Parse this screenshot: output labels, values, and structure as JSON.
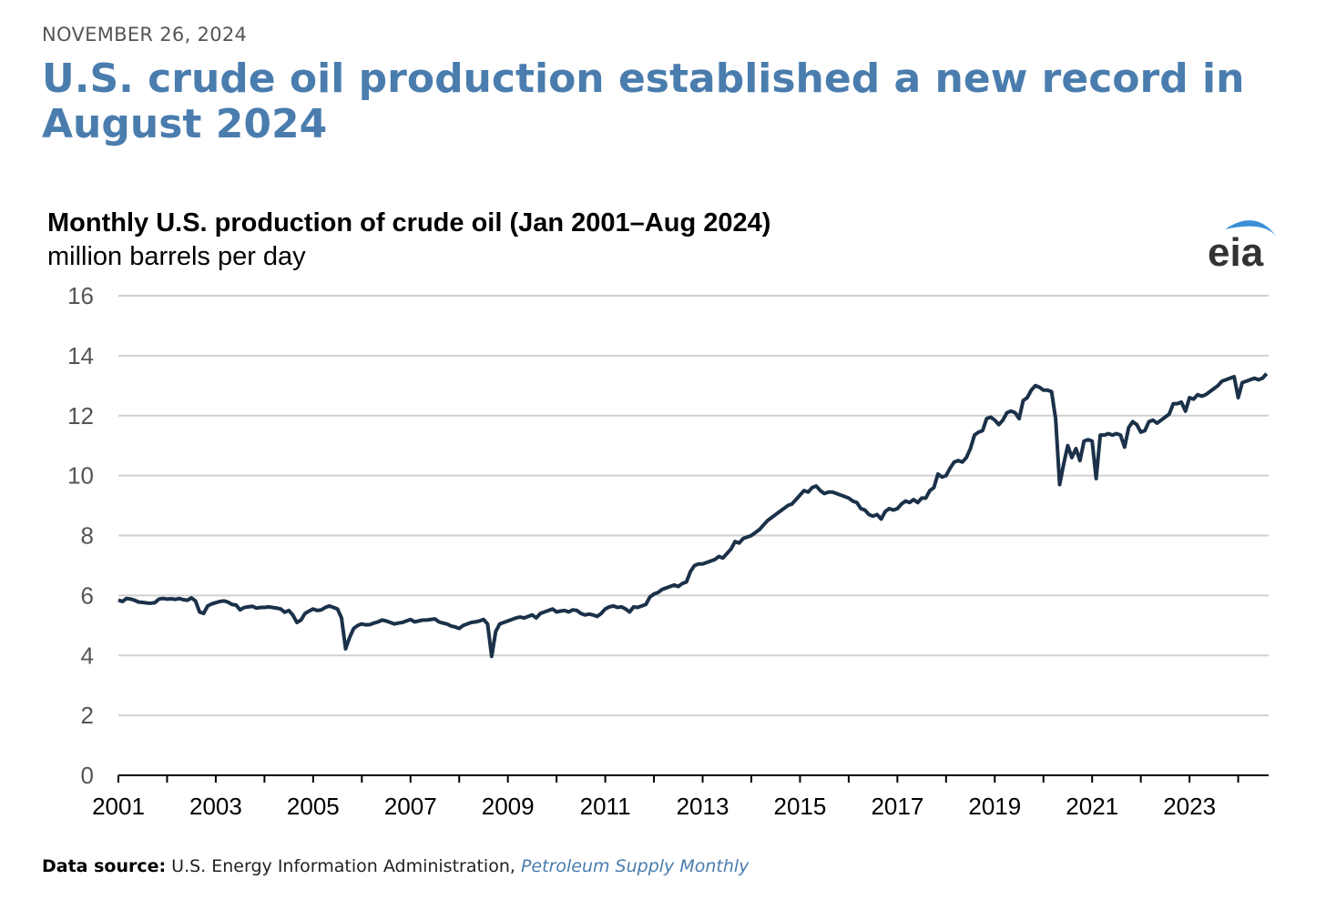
{
  "date": "NOVEMBER 26, 2024",
  "headline": "U.S. crude oil production established a new record in August 2024",
  "logo": "eia",
  "source": {
    "label": "Data source:",
    "text": "U.S. Energy Information Administration,",
    "link": "Petroleum Supply Monthly"
  },
  "chart_data": {
    "type": "line",
    "title": "Monthly U.S. production of crude oil (Jan 2001–Aug 2024)",
    "subtitle": "million barrels per day",
    "xlim": [
      2001,
      2024.625
    ],
    "xticks": [
      2001,
      2003,
      2005,
      2007,
      2009,
      2011,
      2013,
      2015,
      2017,
      2019,
      2021,
      2023
    ],
    "xminorticks": [
      2002,
      2004,
      2006,
      2008,
      2010,
      2012,
      2014,
      2016,
      2018,
      2020,
      2022,
      2024
    ],
    "ylim": [
      0,
      16
    ],
    "yticks": [
      0,
      2,
      4,
      6,
      8,
      10,
      12,
      14,
      16
    ],
    "grid": true,
    "x": [
      2001,
      2001.083,
      2001.167,
      2001.25,
      2001.333,
      2001.417,
      2001.5,
      2001.583,
      2001.667,
      2001.75,
      2001.833,
      2001.917,
      2002,
      2002.083,
      2002.167,
      2002.25,
      2002.333,
      2002.417,
      2002.5,
      2002.583,
      2002.667,
      2002.75,
      2002.833,
      2002.917,
      2003,
      2003.083,
      2003.167,
      2003.25,
      2003.333,
      2003.417,
      2003.5,
      2003.583,
      2003.667,
      2003.75,
      2003.833,
      2003.917,
      2004,
      2004.083,
      2004.167,
      2004.25,
      2004.333,
      2004.417,
      2004.5,
      2004.583,
      2004.667,
      2004.75,
      2004.833,
      2004.917,
      2005,
      2005.083,
      2005.167,
      2005.25,
      2005.333,
      2005.417,
      2005.5,
      2005.583,
      2005.667,
      2005.75,
      2005.833,
      2005.917,
      2006,
      2006.083,
      2006.167,
      2006.25,
      2006.333,
      2006.417,
      2006.5,
      2006.583,
      2006.667,
      2006.75,
      2006.833,
      2006.917,
      2007,
      2007.083,
      2007.167,
      2007.25,
      2007.333,
      2007.417,
      2007.5,
      2007.583,
      2007.667,
      2007.75,
      2007.833,
      2007.917,
      2008,
      2008.083,
      2008.167,
      2008.25,
      2008.333,
      2008.417,
      2008.5,
      2008.583,
      2008.667,
      2008.75,
      2008.833,
      2008.917,
      2009,
      2009.083,
      2009.167,
      2009.25,
      2009.333,
      2009.417,
      2009.5,
      2009.583,
      2009.667,
      2009.75,
      2009.833,
      2009.917,
      2010,
      2010.083,
      2010.167,
      2010.25,
      2010.333,
      2010.417,
      2010.5,
      2010.583,
      2010.667,
      2010.75,
      2010.833,
      2010.917,
      2011,
      2011.083,
      2011.167,
      2011.25,
      2011.333,
      2011.417,
      2011.5,
      2011.583,
      2011.667,
      2011.75,
      2011.833,
      2011.917,
      2012,
      2012.083,
      2012.167,
      2012.25,
      2012.333,
      2012.417,
      2012.5,
      2012.583,
      2012.667,
      2012.75,
      2012.833,
      2012.917,
      2013,
      2013.083,
      2013.167,
      2013.25,
      2013.333,
      2013.417,
      2013.5,
      2013.583,
      2013.667,
      2013.75,
      2013.833,
      2013.917,
      2014,
      2014.083,
      2014.167,
      2014.25,
      2014.333,
      2014.417,
      2014.5,
      2014.583,
      2014.667,
      2014.75,
      2014.833,
      2014.917,
      2015,
      2015.083,
      2015.167,
      2015.25,
      2015.333,
      2015.417,
      2015.5,
      2015.583,
      2015.667,
      2015.75,
      2015.833,
      2015.917,
      2016,
      2016.083,
      2016.167,
      2016.25,
      2016.333,
      2016.417,
      2016.5,
      2016.583,
      2016.667,
      2016.75,
      2016.833,
      2016.917,
      2017,
      2017.083,
      2017.167,
      2017.25,
      2017.333,
      2017.417,
      2017.5,
      2017.583,
      2017.667,
      2017.75,
      2017.833,
      2017.917,
      2018,
      2018.083,
      2018.167,
      2018.25,
      2018.333,
      2018.417,
      2018.5,
      2018.583,
      2018.667,
      2018.75,
      2018.833,
      2018.917,
      2019,
      2019.083,
      2019.167,
      2019.25,
      2019.333,
      2019.417,
      2019.5,
      2019.583,
      2019.667,
      2019.75,
      2019.833,
      2019.917,
      2020,
      2020.083,
      2020.167,
      2020.25,
      2020.333,
      2020.417,
      2020.5,
      2020.583,
      2020.667,
      2020.75,
      2020.833,
      2020.917,
      2021,
      2021.083,
      2021.167,
      2021.25,
      2021.333,
      2021.417,
      2021.5,
      2021.583,
      2021.667,
      2021.75,
      2021.833,
      2021.917,
      2022,
      2022.083,
      2022.167,
      2022.25,
      2022.333,
      2022.417,
      2022.5,
      2022.583,
      2022.667,
      2022.75,
      2022.833,
      2022.917,
      2023,
      2023.083,
      2023.167,
      2023.25,
      2023.333,
      2023.417,
      2023.5,
      2023.583,
      2023.667,
      2023.75,
      2023.833,
      2023.917,
      2024,
      2024.083,
      2024.167,
      2024.25,
      2024.333,
      2024.417,
      2024.5,
      2024.583
    ],
    "series": [
      {
        "color": "#1b3149",
        "values": [
          5.85,
          5.8,
          5.9,
          5.88,
          5.84,
          5.78,
          5.77,
          5.75,
          5.74,
          5.76,
          5.88,
          5.9,
          5.88,
          5.89,
          5.87,
          5.9,
          5.86,
          5.84,
          5.92,
          5.82,
          5.45,
          5.4,
          5.65,
          5.72,
          5.76,
          5.8,
          5.82,
          5.78,
          5.7,
          5.68,
          5.52,
          5.6,
          5.62,
          5.64,
          5.58,
          5.6,
          5.6,
          5.62,
          5.6,
          5.58,
          5.55,
          5.44,
          5.5,
          5.35,
          5.1,
          5.18,
          5.4,
          5.48,
          5.55,
          5.5,
          5.52,
          5.6,
          5.65,
          5.6,
          5.55,
          5.25,
          4.22,
          4.6,
          4.9,
          5.0,
          5.05,
          5.02,
          5.03,
          5.08,
          5.12,
          5.18,
          5.15,
          5.1,
          5.05,
          5.08,
          5.1,
          5.15,
          5.2,
          5.12,
          5.15,
          5.18,
          5.18,
          5.2,
          5.22,
          5.12,
          5.08,
          5.05,
          4.98,
          4.95,
          4.9,
          5.0,
          5.05,
          5.1,
          5.12,
          5.15,
          5.2,
          5.05,
          3.97,
          4.8,
          5.05,
          5.1,
          5.15,
          5.2,
          5.25,
          5.28,
          5.25,
          5.3,
          5.35,
          5.25,
          5.4,
          5.45,
          5.5,
          5.55,
          5.45,
          5.48,
          5.5,
          5.45,
          5.52,
          5.5,
          5.4,
          5.35,
          5.38,
          5.35,
          5.3,
          5.4,
          5.55,
          5.62,
          5.65,
          5.6,
          5.62,
          5.55,
          5.45,
          5.62,
          5.6,
          5.65,
          5.7,
          5.95,
          6.05,
          6.1,
          6.2,
          6.25,
          6.3,
          6.35,
          6.3,
          6.4,
          6.45,
          6.8,
          7.0,
          7.05,
          7.05,
          7.1,
          7.15,
          7.2,
          7.3,
          7.25,
          7.4,
          7.55,
          7.8,
          7.75,
          7.9,
          7.95,
          8.0,
          8.1,
          8.2,
          8.35,
          8.5,
          8.6,
          8.7,
          8.8,
          8.9,
          9.0,
          9.05,
          9.2,
          9.35,
          9.5,
          9.45,
          9.6,
          9.65,
          9.5,
          9.4,
          9.45,
          9.45,
          9.4,
          9.35,
          9.3,
          9.25,
          9.15,
          9.1,
          8.9,
          8.85,
          8.7,
          8.65,
          8.7,
          8.55,
          8.8,
          8.9,
          8.85,
          8.9,
          9.05,
          9.15,
          9.1,
          9.2,
          9.1,
          9.25,
          9.25,
          9.5,
          9.6,
          10.05,
          9.95,
          10.0,
          10.25,
          10.45,
          10.5,
          10.45,
          10.6,
          10.9,
          11.35,
          11.45,
          11.5,
          11.9,
          11.95,
          11.85,
          11.7,
          11.85,
          12.1,
          12.15,
          12.1,
          11.9,
          12.5,
          12.6,
          12.85,
          13.0,
          12.95,
          12.85,
          12.85,
          12.8,
          11.9,
          9.7,
          10.4,
          11.0,
          10.6,
          10.9,
          10.5,
          11.15,
          11.2,
          11.15,
          9.9,
          11.35,
          11.35,
          11.4,
          11.35,
          11.4,
          11.35,
          10.95,
          11.6,
          11.8,
          11.7,
          11.45,
          11.5,
          11.8,
          11.85,
          11.75,
          11.85,
          11.95,
          12.05,
          12.4,
          12.4,
          12.45,
          12.15,
          12.6,
          12.55,
          12.7,
          12.65,
          12.7,
          12.8,
          12.9,
          13.0,
          13.15,
          13.2,
          13.25,
          13.3,
          12.6,
          13.1,
          13.15,
          13.2,
          13.25,
          13.2,
          13.25,
          13.4
        ]
      }
    ]
  }
}
